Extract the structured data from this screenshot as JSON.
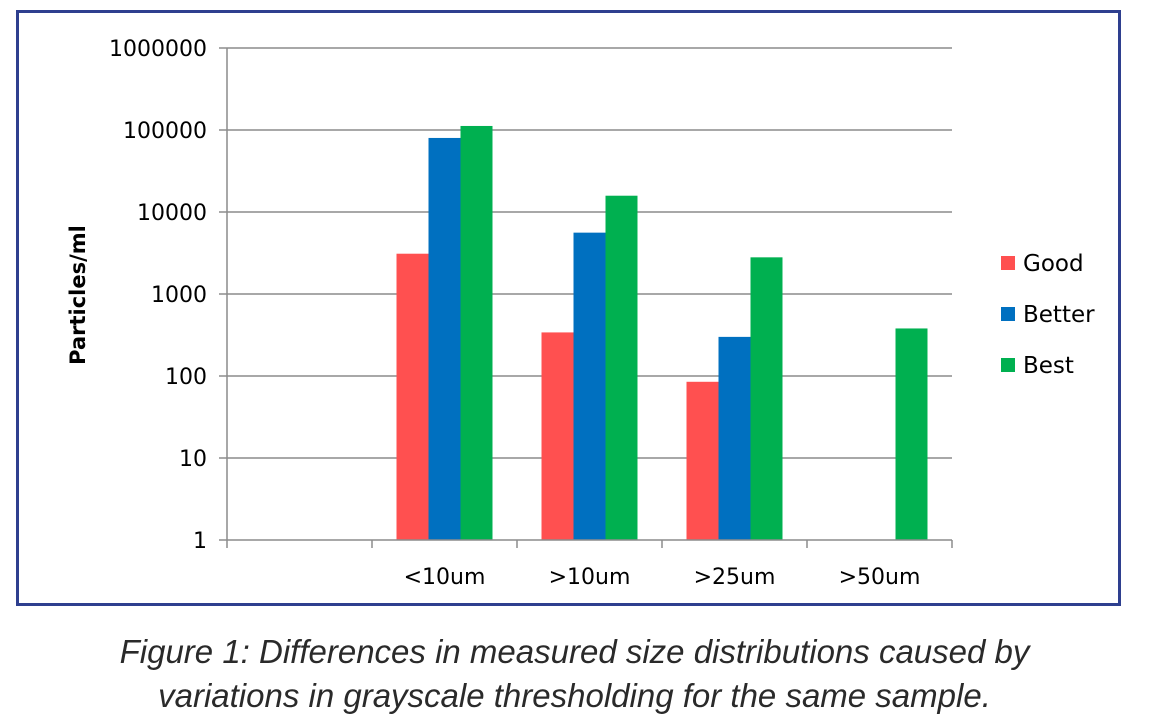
{
  "chart_data": {
    "type": "bar",
    "scale": "log",
    "categories": [
      "",
      "<10um",
      ">10um",
      ">25um",
      ">50um"
    ],
    "series": [
      {
        "name": "Good",
        "color": "#FF5050",
        "values": [
          null,
          3100,
          340,
          85,
          null
        ]
      },
      {
        "name": "Better",
        "color": "#0070C0",
        "values": [
          null,
          80000,
          5600,
          300,
          null
        ]
      },
      {
        "name": "Best",
        "color": "#00B050",
        "values": [
          null,
          112000,
          15800,
          2800,
          380
        ]
      }
    ],
    "y_ticks": [
      "1",
      "10",
      "100",
      "1000",
      "10000",
      "100000",
      "1000000"
    ],
    "ylim": [
      1,
      1000000
    ],
    "ylabel": "Particles/ml",
    "xlabel": "",
    "title": "",
    "grid": true,
    "legend_position": "right"
  },
  "caption": {
    "line1": "Figure 1: Differences in measured size distributions caused by",
    "line2": "variations in grayscale thresholding for the same sample."
  },
  "colors": {
    "frame_border": "#2E3F8F",
    "gridline": "#8C8C8C",
    "axis": "#8C8C8C"
  }
}
